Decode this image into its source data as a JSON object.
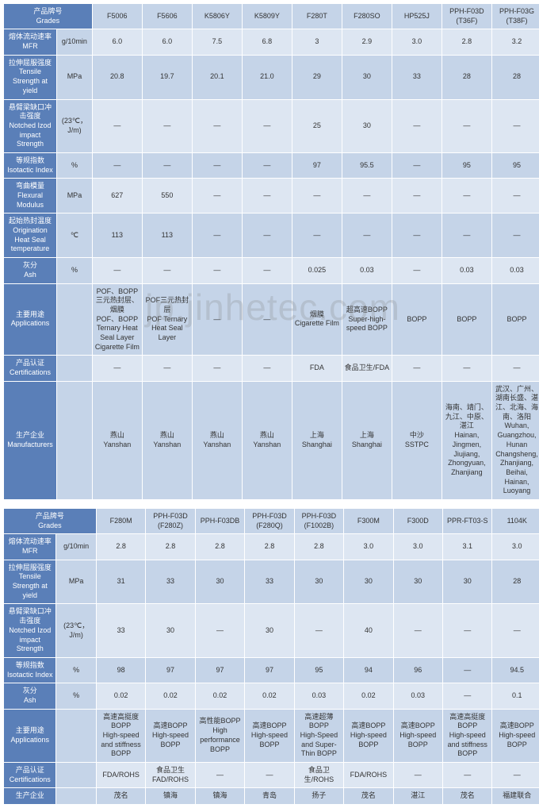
{
  "watermark": "jp.jinhetec.com",
  "table1": {
    "label_col_width": 66,
    "unit_col_width": 44,
    "grade_col_width": 62,
    "headers": {
      "label": "产品牌号\nGrades",
      "grades": [
        "F5006",
        "F5606",
        "K5806Y",
        "K5809Y",
        "F280T",
        "F280SO",
        "HP525J",
        "PPH-F03D (T36F)",
        "PPH-F03G (T38F)"
      ]
    },
    "rows": [
      {
        "label": "熔体流动速率\nMFR",
        "unit": "g/10min",
        "vals": [
          "6.0",
          "6.0",
          "7.5",
          "6.8",
          "3",
          "2.9",
          "3.0",
          "2.8",
          "3.2"
        ]
      },
      {
        "label": "拉伸屈服强度\nTensile Strength at yield",
        "unit": "MPa",
        "vals": [
          "20.8",
          "19.7",
          "20.1",
          "21.0",
          "29",
          "30",
          "33",
          "28",
          "28"
        ]
      },
      {
        "label": "悬臂梁缺口冲击强度\nNotched Izod impact Strength",
        "unit": "(23℃，J/m)",
        "vals": [
          "—",
          "—",
          "—",
          "—",
          "25",
          "30",
          "—",
          "—",
          "—"
        ]
      },
      {
        "label": "等规指数\nIsotactic Index",
        "unit": "%",
        "vals": [
          "—",
          "—",
          "—",
          "—",
          "97",
          "95.5",
          "—",
          "95",
          "95"
        ]
      },
      {
        "label": "弯曲模量\nFlexural Modulus",
        "unit": "MPa",
        "vals": [
          "627",
          "550",
          "—",
          "—",
          "—",
          "—",
          "—",
          "—",
          "—"
        ]
      },
      {
        "label": "起始热封温度\nOrigination Heat Seal temperature",
        "unit": "℃",
        "vals": [
          "113",
          "113",
          "—",
          "—",
          "—",
          "—",
          "—",
          "—",
          "—"
        ]
      },
      {
        "label": "灰分\nAsh",
        "unit": "%",
        "vals": [
          "—",
          "—",
          "—",
          "—",
          "0.025",
          "0.03",
          "—",
          "0.03",
          "0.03"
        ]
      },
      {
        "label": "主要用途\nApplications",
        "unit": "",
        "vals": [
          "POF、BOPP三元热封层、烟膜\nPOF、BOPP Ternary Heat Seal Layer Cigarette Film",
          "POF三元热封层\nPOF Ternary Heat Seal Layer",
          "—",
          "—",
          "烟膜\nCigarette Film",
          "超高速BOPP\nSuper-high-speed BOPP",
          "BOPP",
          "BOPP",
          "BOPP"
        ]
      },
      {
        "label": "产品认证\nCertifications",
        "unit": "",
        "vals": [
          "—",
          "—",
          "—",
          "—",
          "FDA",
          "食品卫生/FDA",
          "—",
          "—",
          "—"
        ]
      },
      {
        "label": "生产企业\nManufacturers",
        "unit": "",
        "vals": [
          "燕山\nYanshan",
          "燕山\nYanshan",
          "燕山\nYanshan",
          "燕山\nYanshan",
          "上海\nShanghai",
          "上海\nShanghai",
          "中沙\nSSTPC",
          "海南、靖门、九江、中原、湛江\nHainan, Jingmen, Jiujiang, Zhongyuan, Zhanjiang",
          "武汉、广州、湖南长盛、湛江、北海、海南、洛阳\nWuhan, Guangzhou, Hunan Changsheng, Zhanjiang, Beihai, Hainan, Luoyang"
        ]
      }
    ]
  },
  "table2": {
    "label_col_width": 66,
    "unit_col_width": 50,
    "grade_col_width": 62,
    "headers": {
      "label": "产品牌号\nGrades",
      "grades": [
        "F280M",
        "PPH-F03D (F280Z)",
        "PPH-F03DB",
        "PPH-F03D (F280Q)",
        "PPH-F03D (F1002B)",
        "F300M",
        "F300D",
        "PPR-FT03-S",
        "1104K"
      ]
    },
    "rows": [
      {
        "label": "熔体流动速率MFR",
        "unit": "g/10min",
        "vals": [
          "2.8",
          "2.8",
          "2.8",
          "2.8",
          "2.8",
          "3.0",
          "3.0",
          "3.1",
          "3.0"
        ]
      },
      {
        "label": "拉伸屈服强度\nTensile Strength at yield",
        "unit": "MPa",
        "vals": [
          "31",
          "33",
          "30",
          "33",
          "30",
          "30",
          "30",
          "30",
          "28"
        ]
      },
      {
        "label": "悬臂梁缺口冲击强度\nNotched Izod impact Strength",
        "unit": "(23℃，J/m)",
        "vals": [
          "33",
          "30",
          "—",
          "30",
          "—",
          "40",
          "—",
          "—",
          "—"
        ]
      },
      {
        "label": "等规指数\nIsotactic Index",
        "unit": "%",
        "vals": [
          "98",
          "97",
          "97",
          "97",
          "95",
          "94",
          "96",
          "—",
          "94.5"
        ]
      },
      {
        "label": "灰分\nAsh",
        "unit": "%",
        "vals": [
          "0.02",
          "0.02",
          "0.02",
          "0.02",
          "0.03",
          "0.02",
          "0.03",
          "—",
          "0.1"
        ]
      },
      {
        "label": "主要用途\nApplications",
        "unit": "",
        "vals": [
          "高速高挺度BOPP\nHigh-speed and stiffness BOPP",
          "高速BOPP\nHigh-speed BOPP",
          "高性能BOPP\nHigh performance BOPP",
          "高速BOPP\nHigh-speed BOPP",
          "高速超薄BOPP\nHigh-Speed and Super-Thin BOPP",
          "高速BOPP\nHigh-speed BOPP",
          "高速BOPP\nHigh-speed BOPP",
          "高速高挺度BOPP\nHigh-speed and stiffness BOPP",
          "高速BOPP\nHigh-speed BOPP"
        ]
      },
      {
        "label": "产品认证\nCertifications",
        "unit": "",
        "vals": [
          "FDA/ROHS",
          "食品卫生\nFAD/ROHS",
          "—",
          "—",
          "食品卫生/ROHS",
          "FDA/ROHS",
          "—",
          "—",
          "—"
        ]
      },
      {
        "label": "生产企业",
        "unit": "",
        "vals": [
          "茂名",
          "镇海",
          "镇海",
          "青岛",
          "扬子",
          "茂名",
          "湛江",
          "茂名",
          "福建联合"
        ]
      }
    ]
  }
}
